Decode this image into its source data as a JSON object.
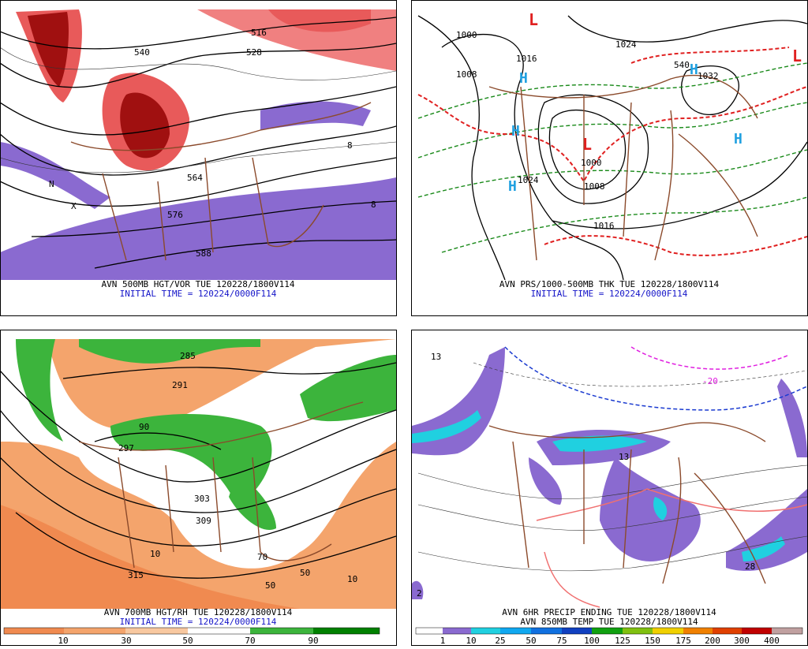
{
  "panels": [
    {
      "lines": [
        "AVN 500MB HGT/VOR TUE 120228/1800V114",
        "INITIAL TIME = 120224/0000F114"
      ],
      "labels": [
        "540",
        "528",
        "516",
        "564",
        "576",
        "588",
        "N",
        "X",
        "8",
        "8"
      ]
    },
    {
      "lines": [
        "AVN PRS/1000-500MB THK TUE 120228/1800V114",
        "INITIAL TIME = 120224/0000F114"
      ],
      "labels": [
        "L",
        "L",
        "L",
        "H",
        "H",
        "H",
        "H",
        "H",
        "1000",
        "1016",
        "1008",
        "1024",
        "1032",
        "1000",
        "1008",
        "1016",
        "1024",
        "540"
      ]
    },
    {
      "lines": [
        "AVN 700MB HGT/RH TUE 120228/1800V114",
        "INITIAL TIME = 120224/0000F114"
      ],
      "labels": [
        "285",
        "291",
        "297",
        "303",
        "309",
        "315",
        "90",
        "70",
        "50",
        "50",
        "10",
        "10"
      ],
      "colorbar": [
        "10",
        "30",
        "50",
        "70",
        "90"
      ]
    },
    {
      "lines": [
        "AVN 6HR PRECIP ENDING TUE 120228/1800V114",
        "AVN 850MB TEMP TUE 120228/1800V114"
      ],
      "labels": [
        "13",
        "-20",
        "28",
        "2",
        "13"
      ],
      "colorbar": [
        "1",
        "10",
        "25",
        "50",
        "75",
        "100",
        "125",
        "150",
        "175",
        "200",
        "300",
        "400"
      ]
    }
  ]
}
